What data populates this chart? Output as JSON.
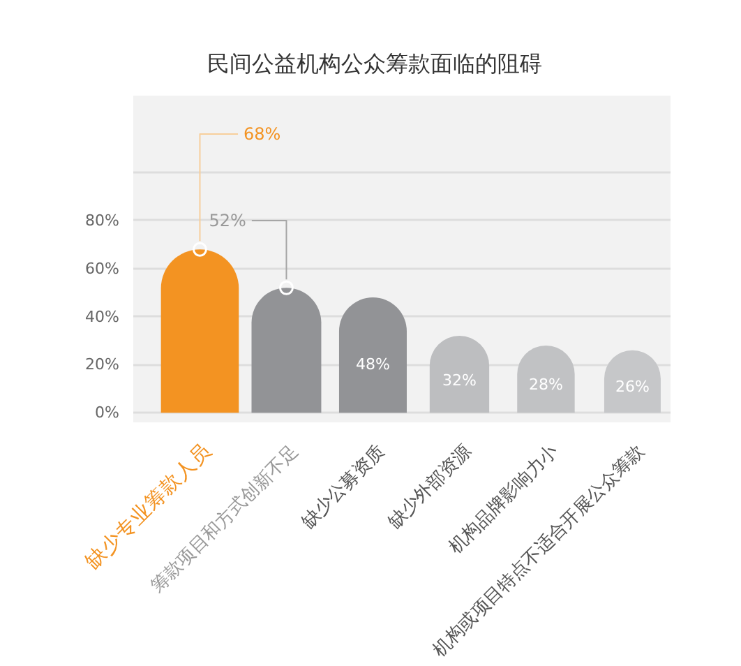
{
  "chart_data": {
    "type": "bar",
    "title": "民间公益机构公众筹款面临的阻碍",
    "categories": [
      "缺少专业筹款人员",
      "筹款项目和方式创新不足",
      "缺少公募资质",
      "缺少外部资源",
      "机构品牌影响力小",
      "机构或项目特点不适合开展公众筹款"
    ],
    "values": [
      68,
      52,
      48,
      32,
      28,
      26
    ],
    "colors": [
      "#f39322",
      "#929396",
      "#929396",
      "#bdbec0",
      "#c1c2c4",
      "#c6c7c9"
    ],
    "value_labels": [
      "68%",
      "52%",
      "48%",
      "32%",
      "28%",
      "26%"
    ],
    "ylim": [
      -4,
      132
    ],
    "yticks": [
      {
        "value": 0,
        "label": "0%"
      },
      {
        "value": 20,
        "label": "20%"
      },
      {
        "value": 40,
        "label": "40%"
      },
      {
        "value": 60,
        "label": "60%"
      },
      {
        "value": 80,
        "label": "80%"
      },
      {
        "value": 100,
        "label": null
      }
    ],
    "grid": "y"
  }
}
